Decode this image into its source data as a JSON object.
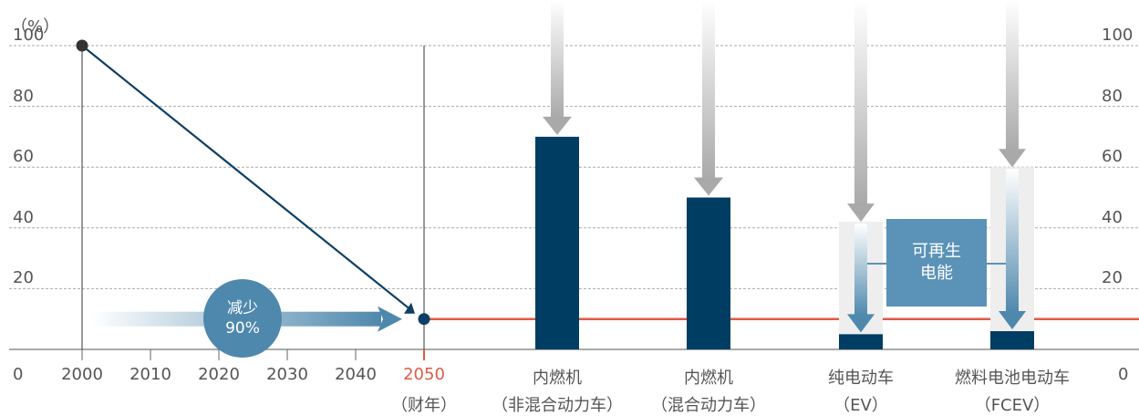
{
  "chart_data": {
    "type": "bar",
    "ylabel": "（%）",
    "yticks": [
      20,
      40,
      60,
      80,
      100
    ],
    "zero_labels": [
      "0",
      "0"
    ],
    "ylim": [
      0,
      100
    ],
    "grid": true,
    "years": [
      "2000",
      "2010",
      "2020",
      "2030",
      "2040"
    ],
    "target_year": "2050",
    "target_year_sub": "（财年）",
    "trend_line": {
      "from": {
        "year": 2000,
        "value": 100
      },
      "to": {
        "year": 2050,
        "value": 10
      }
    },
    "target_level": 10,
    "reduction_text": [
      "减少",
      "90%"
    ],
    "categories": [
      {
        "name": "内燃机",
        "sub": "（非混合动力车）",
        "value": 70,
        "top": 100
      },
      {
        "name": "内燃机",
        "sub": "（混合动力车）",
        "value": 50,
        "top": 100
      },
      {
        "name": "纯电动车",
        "sub": "（EV）",
        "value": 5,
        "top": 100,
        "before": 42
      },
      {
        "name": "燃料电池电动车",
        "sub": "（FCEV）",
        "value": 6,
        "top": 100,
        "before": 60
      }
    ],
    "renewable_label": [
      "可再生",
      "电能"
    ],
    "colors": {
      "bar": "#003d62",
      "line": "#0d3f64",
      "target": "#e05a47",
      "grid": "#aaaaaa",
      "arrow": "#a9a9a9",
      "label": "#4f88ad"
    }
  }
}
